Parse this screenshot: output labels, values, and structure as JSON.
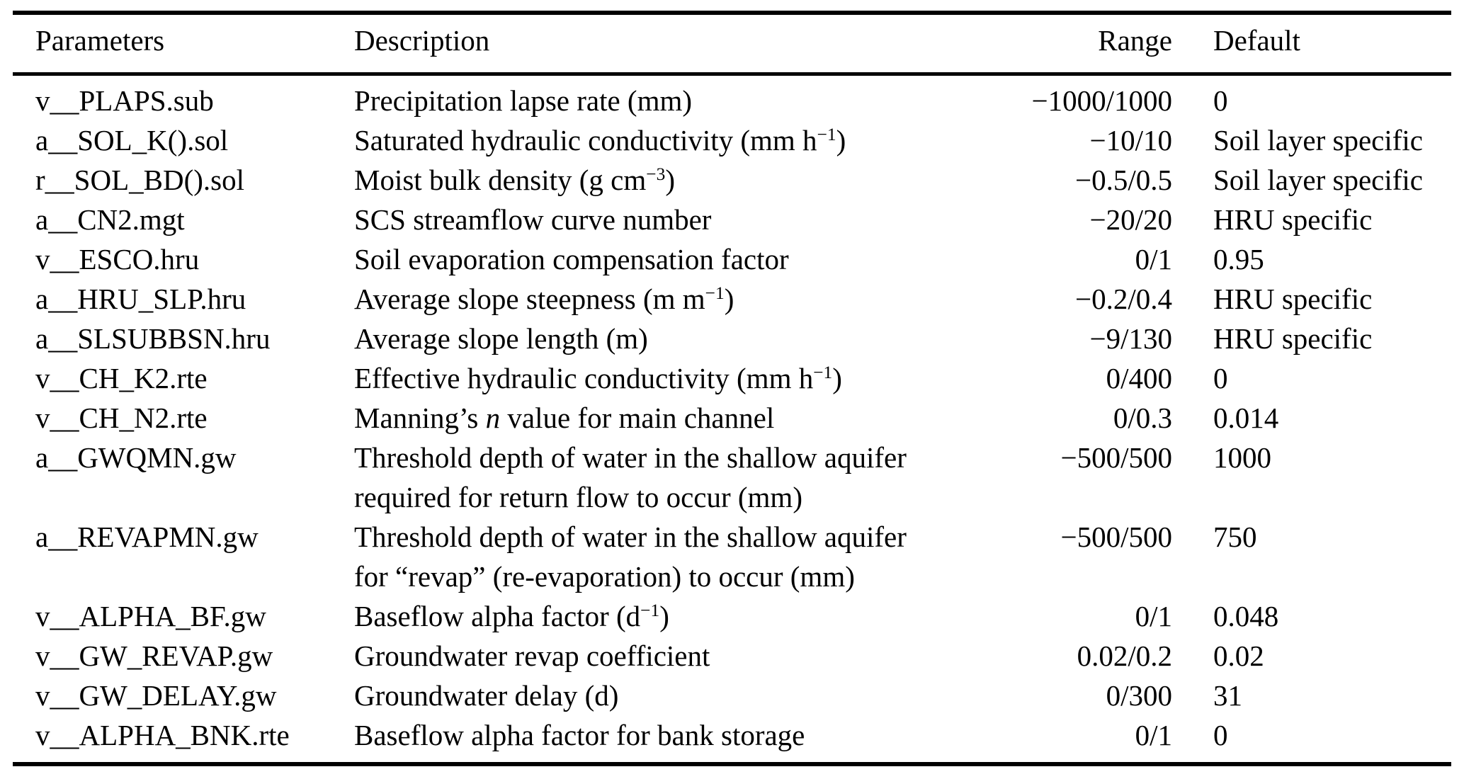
{
  "colors": {
    "text": "#000000",
    "background": "#ffffff",
    "rule": "#000000"
  },
  "table": {
    "headers": [
      "Parameters",
      "Description",
      "Range",
      "Default"
    ],
    "rows": [
      {
        "param": "v__PLAPS.sub",
        "desc": [
          [
            "t",
            "Precipitation lapse rate (mm)"
          ]
        ],
        "range": "−1000/1000",
        "default": "0"
      },
      {
        "param": "a__SOL_K().sol",
        "desc": [
          [
            "t",
            "Saturated hydraulic conductivity (mm h"
          ],
          [
            "sup",
            "−1"
          ],
          [
            "t",
            ")"
          ]
        ],
        "range": "−10/10",
        "default": "Soil layer specific"
      },
      {
        "param": "r__SOL_BD().sol",
        "desc": [
          [
            "t",
            "Moist bulk density (g cm"
          ],
          [
            "sup",
            "−3"
          ],
          [
            "t",
            ")"
          ]
        ],
        "range": "−0.5/0.5",
        "default": "Soil layer specific"
      },
      {
        "param": "a__CN2.mgt",
        "desc": [
          [
            "t",
            "SCS streamflow curve number"
          ]
        ],
        "range": "−20/20",
        "default": "HRU specific"
      },
      {
        "param": "v__ESCO.hru",
        "desc": [
          [
            "t",
            "Soil evaporation compensation factor"
          ]
        ],
        "range": "0/1",
        "default": "0.95"
      },
      {
        "param": "a__HRU_SLP.hru",
        "desc": [
          [
            "t",
            "Average slope steepness (m m"
          ],
          [
            "sup",
            "−1"
          ],
          [
            "t",
            ")"
          ]
        ],
        "range": "−0.2/0.4",
        "default": "HRU specific"
      },
      {
        "param": "a__SLSUBBSN.hru",
        "desc": [
          [
            "t",
            "Average slope length (m)"
          ]
        ],
        "range": "−9/130",
        "default": "HRU specific"
      },
      {
        "param": "v__CH_K2.rte",
        "desc": [
          [
            "t",
            "Effective hydraulic conductivity (mm h"
          ],
          [
            "sup",
            "−1"
          ],
          [
            "t",
            ")"
          ]
        ],
        "range": "0/400",
        "default": "0"
      },
      {
        "param": "v__CH_N2.rte",
        "desc": [
          [
            "t",
            "Manning’s "
          ],
          [
            "i",
            "n"
          ],
          [
            "t",
            " value for main channel"
          ]
        ],
        "range": "0/0.3",
        "default": "0.014"
      },
      {
        "param": "a__GWQMN.gw",
        "desc": [
          [
            "t",
            "Threshold depth of water in the shallow aquifer"
          ]
        ],
        "desc2": [
          [
            "t",
            "required for return flow to occur (mm)"
          ]
        ],
        "range": "−500/500",
        "default": "1000"
      },
      {
        "param": "a__REVAPMN.gw",
        "desc": [
          [
            "t",
            "Threshold depth of water in the shallow aquifer"
          ]
        ],
        "desc2": [
          [
            "t",
            "for “revap” (re-evaporation) to occur (mm)"
          ]
        ],
        "range": "−500/500",
        "default": "750"
      },
      {
        "param": "v__ALPHA_BF.gw",
        "desc": [
          [
            "t",
            "Baseflow alpha factor (d"
          ],
          [
            "sup",
            "−1"
          ],
          [
            "t",
            ")"
          ]
        ],
        "range": "0/1",
        "default": "0.048"
      },
      {
        "param": "v__GW_REVAP.gw",
        "desc": [
          [
            "t",
            "Groundwater revap coefficient"
          ]
        ],
        "range": "0.02/0.2",
        "default": "0.02"
      },
      {
        "param": "v__GW_DELAY.gw",
        "desc": [
          [
            "t",
            "Groundwater delay (d)"
          ]
        ],
        "range": "0/300",
        "default": "31"
      },
      {
        "param": "v__ALPHA_BNK.rte",
        "desc": [
          [
            "t",
            "Baseflow alpha factor for bank storage"
          ]
        ],
        "range": "0/1",
        "default": "0"
      }
    ]
  }
}
